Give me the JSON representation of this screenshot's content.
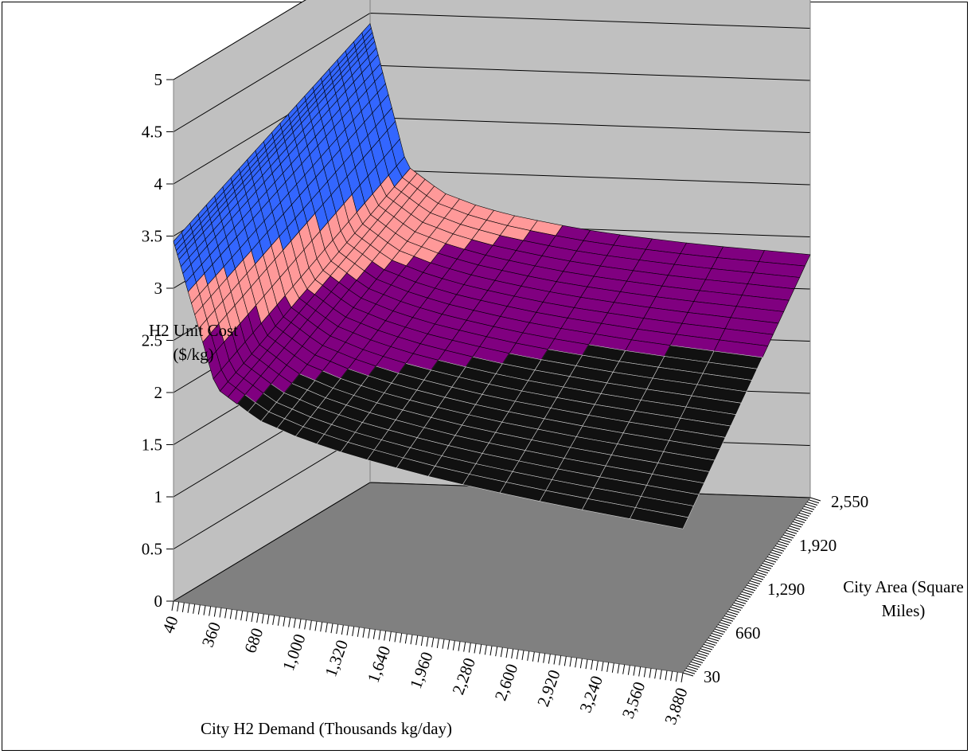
{
  "chart_data": {
    "type": "surface",
    "title": "",
    "zlabel": "H2 Unit Cost ($/kg)",
    "xlabel": "City H2 Demand (Thousands kg/day)",
    "ylabel": "City Area (Square Miles)",
    "zlim": [
      0,
      5
    ],
    "z_ticks": [
      "0",
      "0.5",
      "1",
      "1.5",
      "2",
      "2.5",
      "3",
      "3.5",
      "4",
      "4.5",
      "5"
    ],
    "x_range": [
      40,
      3880
    ],
    "x_tick_labels": [
      "40",
      "360",
      "680",
      "1,000",
      "1,320",
      "1,640",
      "1,960",
      "2,280",
      "2,600",
      "2,920",
      "3,240",
      "3,560",
      "3,880"
    ],
    "y_range": [
      30,
      2550
    ],
    "y_tick_labels": [
      "30",
      "660",
      "1,290",
      "1,920",
      "2,550"
    ],
    "color_bands": [
      {
        "range": [
          0,
          0.5
        ],
        "color": "#ffffff"
      },
      {
        "range": [
          0.5,
          1
        ],
        "color": "#ffffff"
      },
      {
        "range": [
          1,
          1.5
        ],
        "color": "#ffffff"
      },
      {
        "range": [
          1.5,
          2
        ],
        "color": "#ffffff"
      },
      {
        "range": [
          2,
          2.5
        ],
        "color": "#800080"
      },
      {
        "range": [
          2.5,
          3
        ],
        "color": "#ff9999"
      },
      {
        "range": [
          3,
          3.5
        ],
        "color": "#3366ff"
      },
      {
        "range": [
          3.5,
          4
        ],
        "color": "#3366ff"
      }
    ],
    "surface_samples": {
      "x": [
        40,
        360,
        680,
        1000,
        1320,
        1640,
        1960,
        2280,
        2600,
        2920,
        3240,
        3560,
        3880
      ],
      "z_at_min_area": [
        3.45,
        2.1,
        1.85,
        1.73,
        1.65,
        1.59,
        1.54,
        1.5,
        1.47,
        1.44,
        1.42,
        1.4,
        1.38
      ],
      "z_at_max_area": [
        4.4,
        3.05,
        2.8,
        2.68,
        2.6,
        2.54,
        2.49,
        2.45,
        2.42,
        2.39,
        2.37,
        2.35,
        2.33
      ]
    },
    "grid": true,
    "walls_color": "#c0c0c0",
    "floor_color": "#808080"
  }
}
